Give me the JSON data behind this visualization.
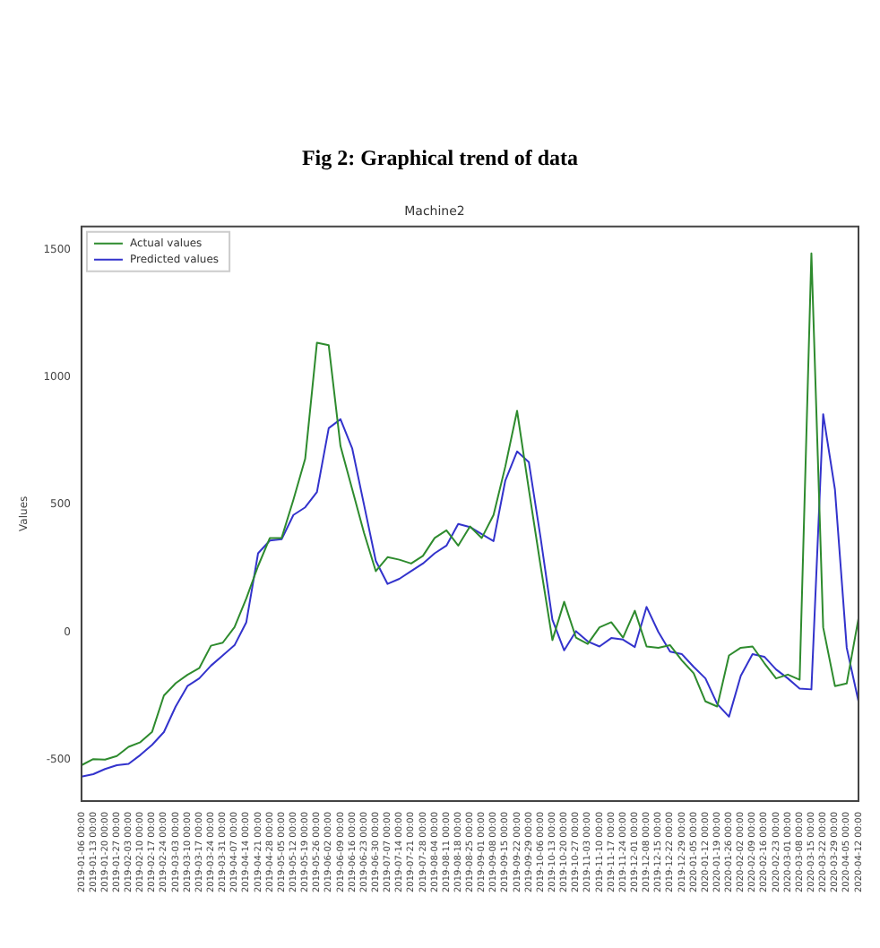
{
  "chart_data": {
    "type": "line",
    "title": "Machine2",
    "ylabel": "Values",
    "annotations": [
      "Fig 2: Graphical trend of data"
    ],
    "categories": [
      "2019-01-06 00:00",
      "2019-01-13 00:00",
      "2019-01-20 00:00",
      "2019-01-27 00:00",
      "2019-02-03 00:00",
      "2019-02-10 00:00",
      "2019-02-17 00:00",
      "2019-02-24 00:00",
      "2019-03-03 00:00",
      "2019-03-10 00:00",
      "2019-03-17 00:00",
      "2019-03-24 00:00",
      "2019-03-31 00:00",
      "2019-04-07 00:00",
      "2019-04-14 00:00",
      "2019-04-21 00:00",
      "2019-04-28 00:00",
      "2019-05-05 00:00",
      "2019-05-12 00:00",
      "2019-05-19 00:00",
      "2019-05-26 00:00",
      "2019-06-02 00:00",
      "2019-06-09 00:00",
      "2019-06-16 00:00",
      "2019-06-23 00:00",
      "2019-06-30 00:00",
      "2019-07-07 00:00",
      "2019-07-14 00:00",
      "2019-07-21 00:00",
      "2019-07-28 00:00",
      "2019-08-04 00:00",
      "2019-08-11 00:00",
      "2019-08-18 00:00",
      "2019-08-25 00:00",
      "2019-09-01 00:00",
      "2019-09-08 00:00",
      "2019-09-15 00:00",
      "2019-09-22 00:00",
      "2019-09-29 00:00",
      "2019-10-06 00:00",
      "2019-10-13 00:00",
      "2019-10-20 00:00",
      "2019-10-27 00:00",
      "2019-11-03 00:00",
      "2019-11-10 00:00",
      "2019-11-17 00:00",
      "2019-11-24 00:00",
      "2019-12-01 00:00",
      "2019-12-08 00:00",
      "2019-12-15 00:00",
      "2019-12-22 00:00",
      "2019-12-29 00:00",
      "2020-01-05 00:00",
      "2020-01-12 00:00",
      "2020-01-19 00:00",
      "2020-01-26 00:00",
      "2020-02-02 00:00",
      "2020-02-09 00:00",
      "2020-02-16 00:00",
      "2020-02-23 00:00",
      "2020-03-01 00:00",
      "2020-03-08 00:00",
      "2020-03-15 00:00",
      "2020-03-22 00:00",
      "2020-03-29 00:00",
      "2020-04-05 00:00",
      "2020-04-12 00:00"
    ],
    "series": [
      {
        "name": "Actual values",
        "color": "#2e8b2e",
        "values": [
          -520,
          -496,
          -498,
          -484,
          -448,
          -430,
          -389,
          -247,
          -199,
          -166,
          -140,
          -52,
          -40,
          21,
          133,
          260,
          370,
          370,
          520,
          680,
          1135,
          1125,
          730,
          560,
          390,
          240,
          295,
          285,
          270,
          300,
          370,
          400,
          340,
          415,
          370,
          460,
          650,
          868,
          560,
          260,
          -30,
          120,
          -20,
          -45,
          20,
          40,
          -20,
          85,
          -55,
          -60,
          -50,
          -110,
          -160,
          -270,
          -290,
          -90,
          -60,
          -55,
          -120,
          -180,
          -165,
          -185,
          1485,
          20,
          -210,
          -200,
          55
        ]
      },
      {
        "name": "Predicted values",
        "color": "#3333cc",
        "values": [
          -565,
          -555,
          -535,
          -520,
          -515,
          -480,
          -440,
          -390,
          -290,
          -210,
          -180,
          -130,
          -90,
          -50,
          40,
          310,
          360,
          365,
          460,
          490,
          550,
          800,
          835,
          720,
          500,
          280,
          190,
          210,
          240,
          270,
          310,
          340,
          425,
          413,
          385,
          358,
          595,
          709,
          667,
          370,
          50,
          -70,
          5,
          -35,
          -55,
          -22,
          -28,
          -57,
          100,
          2,
          -75,
          -85,
          -135,
          -180,
          -280,
          -330,
          -170,
          -85,
          -95,
          -145,
          -180,
          -220,
          -223,
          855,
          560,
          -60,
          -270
        ]
      }
    ],
    "ylim": [
      -660,
      1590
    ],
    "yticks": [
      -500,
      0,
      500,
      1000,
      1500
    ],
    "grid": false,
    "legend": "top left",
    "marker": "none",
    "line_style": "solid"
  }
}
